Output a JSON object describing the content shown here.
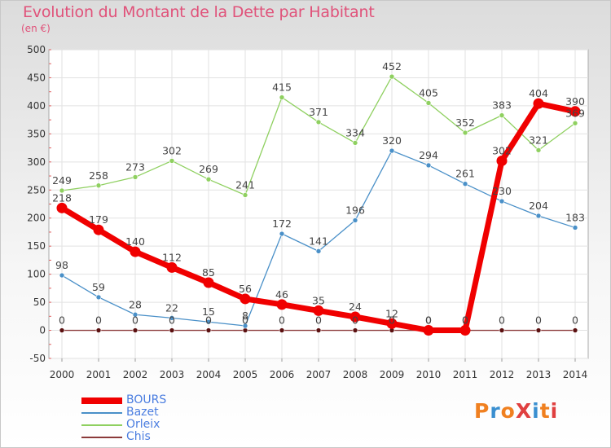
{
  "title": "Evolution du Montant de la Dette par Habitant",
  "unit": "(en €)",
  "logo": {
    "text": "ProXiti",
    "colors": [
      "#f08020",
      "#3a8fd0",
      "#f08020",
      "#e04040",
      "#3a8fd0",
      "#f08020",
      "#e04040"
    ]
  },
  "chart_data": {
    "type": "line",
    "title": "Evolution du Montant de la Dette par Habitant",
    "ylabel": "(en €)",
    "xlabel": "",
    "x": [
      "2000",
      "2001",
      "2002",
      "2003",
      "2004",
      "2005",
      "2006",
      "2007",
      "2008",
      "2009",
      "2010",
      "2011",
      "2012",
      "2013",
      "2014"
    ],
    "ylim": [
      -50,
      500
    ],
    "yticks": [
      -50,
      0,
      50,
      100,
      150,
      200,
      250,
      300,
      350,
      400,
      450,
      500
    ],
    "grid": true,
    "legend_position": "bottom-left",
    "series": [
      {
        "name": "BOURS",
        "color": "#f00000",
        "values": [
          218,
          179,
          140,
          112,
          85,
          56,
          46,
          35,
          24,
          12,
          0,
          0,
          302,
          404,
          390
        ]
      },
      {
        "name": "Bazet",
        "color": "#4a90c8",
        "values": [
          98,
          59,
          28,
          22,
          15,
          8,
          172,
          141,
          196,
          320,
          294,
          261,
          230,
          204,
          183
        ]
      },
      {
        "name": "Orleix",
        "color": "#8fd060",
        "values": [
          249,
          258,
          273,
          302,
          269,
          241,
          415,
          371,
          334,
          452,
          405,
          352,
          383,
          321,
          369
        ]
      },
      {
        "name": "Chis",
        "color": "#8b3a3a",
        "values": [
          0,
          0,
          0,
          0,
          0,
          0,
          0,
          0,
          0,
          0,
          0,
          0,
          0,
          0,
          0
        ]
      }
    ]
  }
}
